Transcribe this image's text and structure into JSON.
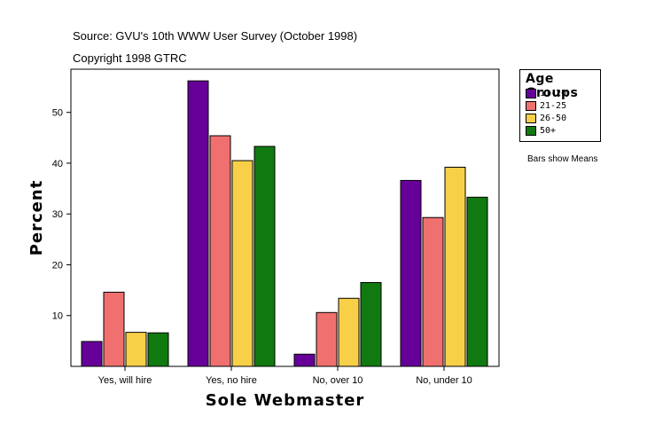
{
  "header": {
    "source": "Source: GVU's 10th WWW User Survey (October 1998)",
    "copyright": "Copyright 1998 GTRC"
  },
  "legend": {
    "title": "Age Groups",
    "items": [
      {
        "label": "11-20",
        "color": "#660099"
      },
      {
        "label": "21-25",
        "color": "#f07070"
      },
      {
        "label": "26-50",
        "color": "#f8d048"
      },
      {
        "label": "50+",
        "color": "#107a10"
      }
    ]
  },
  "note": "Bars show Means",
  "chart_data": {
    "type": "bar",
    "title": "",
    "xlabel": "Sole Webmaster",
    "ylabel": "Percent",
    "ylim": [
      0,
      58.5
    ],
    "yticks": [
      10,
      20,
      30,
      40,
      50
    ],
    "categories": [
      "Yes, will hire",
      "Yes, no hire",
      "No, over 10",
      "No, under 10"
    ],
    "series": [
      {
        "name": "11-20",
        "color": "#660099",
        "values": [
          4.9,
          56.2,
          2.4,
          36.6
        ]
      },
      {
        "name": "21-25",
        "color": "#f07070",
        "values": [
          14.6,
          45.4,
          10.6,
          29.3
        ]
      },
      {
        "name": "26-50",
        "color": "#f8d048",
        "values": [
          6.7,
          40.5,
          13.4,
          39.2
        ]
      },
      {
        "name": "50+",
        "color": "#107a10",
        "values": [
          6.6,
          43.3,
          16.5,
          33.3
        ]
      }
    ],
    "legend_position": "right"
  }
}
